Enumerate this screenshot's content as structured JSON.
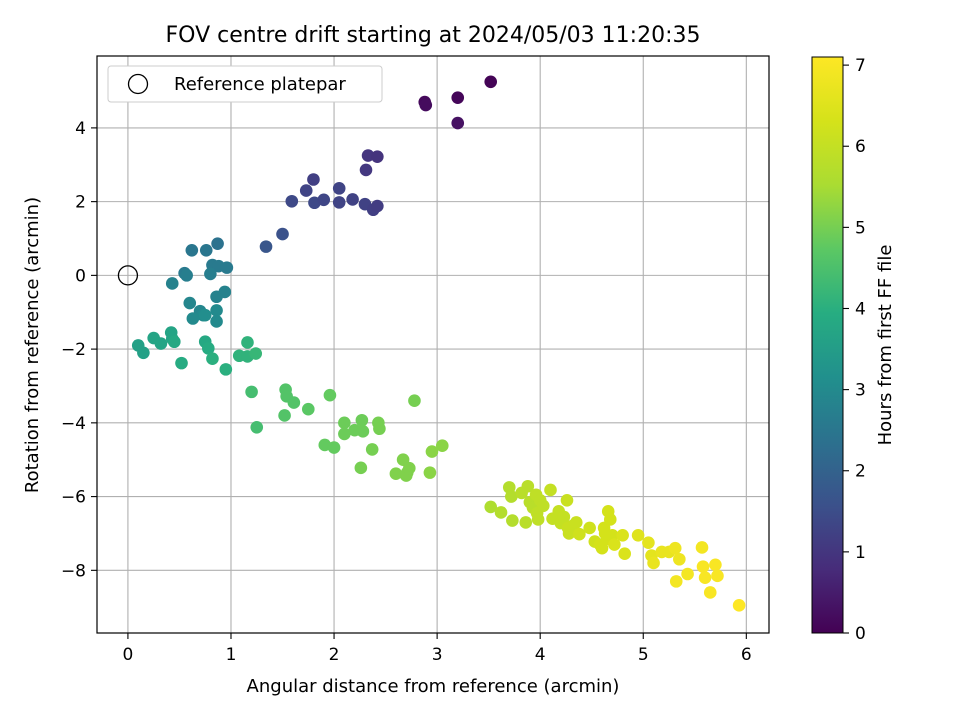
{
  "chart_data": {
    "type": "scatter",
    "title": "FOV centre drift starting at 2024/05/03 11:20:35",
    "xlabel": "Angular distance from reference (arcmin)",
    "ylabel": "Rotation from reference (arcmin)",
    "xlim": [
      -0.3,
      6.22
    ],
    "ylim": [
      -9.7,
      5.95
    ],
    "xticks": [
      0,
      1,
      2,
      3,
      4,
      5,
      6
    ],
    "yticks": [
      -8,
      -6,
      -4,
      -2,
      0,
      2,
      4
    ],
    "grid": true,
    "legend": {
      "position": "upper-left",
      "label": "Reference platepar"
    },
    "reference_point": {
      "x": 0,
      "y": 0
    },
    "colorbar": {
      "label": "Hours from first FF file",
      "colormap": "viridis",
      "range": [
        0,
        7.1
      ],
      "ticks": [
        0,
        1,
        2,
        3,
        4,
        5,
        6,
        7
      ]
    },
    "points": [
      [
        3.52,
        5.25,
        0.05
      ],
      [
        2.88,
        4.7,
        0.15
      ],
      [
        2.89,
        4.62,
        0.2
      ],
      [
        3.2,
        4.82,
        0.1
      ],
      [
        3.2,
        4.13,
        0.3
      ],
      [
        2.33,
        3.25,
        1.0
      ],
      [
        2.42,
        3.22,
        0.95
      ],
      [
        2.31,
        2.86,
        1.05
      ],
      [
        1.8,
        2.6,
        1.2
      ],
      [
        1.73,
        2.3,
        1.3
      ],
      [
        2.05,
        2.36,
        1.3
      ],
      [
        1.59,
        2.01,
        1.4
      ],
      [
        1.81,
        1.97,
        1.4
      ],
      [
        1.9,
        2.05,
        1.35
      ],
      [
        2.05,
        1.98,
        1.3
      ],
      [
        2.18,
        2.06,
        1.25
      ],
      [
        2.3,
        1.93,
        1.25
      ],
      [
        2.38,
        1.78,
        1.2
      ],
      [
        2.42,
        1.88,
        1.15
      ],
      [
        1.34,
        0.78,
        1.7
      ],
      [
        1.5,
        1.12,
        1.6
      ],
      [
        0.87,
        0.86,
        2.4
      ],
      [
        0.62,
        0.68,
        2.5
      ],
      [
        0.76,
        0.68,
        2.5
      ],
      [
        0.82,
        0.28,
        2.6
      ],
      [
        0.88,
        0.25,
        2.6
      ],
      [
        0.96,
        0.21,
        2.6
      ],
      [
        0.55,
        0.06,
        2.6
      ],
      [
        0.57,
        0.0,
        2.7
      ],
      [
        0.8,
        0.04,
        2.7
      ],
      [
        0.43,
        -0.22,
        2.8
      ],
      [
        0.86,
        -0.58,
        2.8
      ],
      [
        0.94,
        -0.45,
        2.8
      ],
      [
        0.6,
        -0.75,
        2.9
      ],
      [
        0.7,
        -0.97,
        2.9
      ],
      [
        0.73,
        -1.08,
        3.0
      ],
      [
        0.86,
        -0.95,
        3.0
      ],
      [
        0.63,
        -1.17,
        3.0
      ],
      [
        0.86,
        -1.25,
        3.0
      ],
      [
        0.75,
        -1.08,
        3.1
      ],
      [
        0.1,
        -1.9,
        3.6
      ],
      [
        0.15,
        -2.1,
        3.6
      ],
      [
        0.25,
        -1.7,
        3.7
      ],
      [
        0.32,
        -1.85,
        3.7
      ],
      [
        0.42,
        -1.55,
        3.7
      ],
      [
        0.43,
        -1.72,
        3.7
      ],
      [
        0.45,
        -1.8,
        3.8
      ],
      [
        0.52,
        -2.38,
        3.9
      ],
      [
        0.75,
        -1.8,
        3.8
      ],
      [
        0.78,
        -1.98,
        3.9
      ],
      [
        0.82,
        -2.26,
        4.0
      ],
      [
        0.95,
        -2.55,
        4.0
      ],
      [
        1.08,
        -2.18,
        4.1
      ],
      [
        1.16,
        -1.82,
        4.1
      ],
      [
        1.16,
        -2.2,
        4.1
      ],
      [
        1.24,
        -2.12,
        4.2
      ],
      [
        1.2,
        -3.16,
        4.4
      ],
      [
        1.25,
        -4.12,
        4.4
      ],
      [
        1.53,
        -3.1,
        4.6
      ],
      [
        1.54,
        -3.28,
        4.6
      ],
      [
        1.61,
        -3.45,
        4.6
      ],
      [
        1.52,
        -3.8,
        4.6
      ],
      [
        1.75,
        -3.63,
        4.7
      ],
      [
        1.96,
        -3.25,
        4.8
      ],
      [
        1.91,
        -4.6,
        4.8
      ],
      [
        2.0,
        -4.67,
        4.8
      ],
      [
        2.1,
        -4.0,
        4.9
      ],
      [
        2.1,
        -4.3,
        4.9
      ],
      [
        2.2,
        -4.2,
        4.9
      ],
      [
        2.27,
        -3.93,
        4.9
      ],
      [
        2.28,
        -4.23,
        4.9
      ],
      [
        2.37,
        -4.72,
        5.0
      ],
      [
        2.43,
        -4.0,
        5.0
      ],
      [
        2.44,
        -4.16,
        5.0
      ],
      [
        2.26,
        -5.22,
        5.0
      ],
      [
        2.78,
        -3.4,
        5.0
      ],
      [
        2.6,
        -5.38,
        5.1
      ],
      [
        2.67,
        -5.0,
        5.1
      ],
      [
        2.7,
        -5.43,
        5.1
      ],
      [
        2.71,
        -5.35,
        5.1
      ],
      [
        2.73,
        -5.23,
        5.1
      ],
      [
        2.93,
        -5.35,
        5.2
      ],
      [
        2.95,
        -4.78,
        5.2
      ],
      [
        3.05,
        -4.62,
        5.2
      ],
      [
        3.52,
        -6.28,
        5.6
      ],
      [
        3.62,
        -6.43,
        5.7
      ],
      [
        3.7,
        -5.75,
        5.7
      ],
      [
        3.72,
        -6.0,
        5.7
      ],
      [
        3.73,
        -6.65,
        5.7
      ],
      [
        3.82,
        -5.9,
        5.8
      ],
      [
        3.86,
        -6.7,
        5.8
      ],
      [
        3.88,
        -5.72,
        5.8
      ],
      [
        3.9,
        -6.15,
        5.8
      ],
      [
        3.93,
        -6.3,
        5.8
      ],
      [
        3.96,
        -5.95,
        5.9
      ],
      [
        3.97,
        -6.45,
        5.9
      ],
      [
        3.98,
        -6.62,
        5.9
      ],
      [
        4.0,
        -6.1,
        5.9
      ],
      [
        4.03,
        -6.25,
        5.9
      ],
      [
        4.1,
        -5.82,
        6.0
      ],
      [
        4.12,
        -6.6,
        6.0
      ],
      [
        4.18,
        -6.4,
        6.0
      ],
      [
        4.2,
        -6.72,
        6.0
      ],
      [
        4.23,
        -6.55,
        6.0
      ],
      [
        4.26,
        -6.1,
        6.1
      ],
      [
        4.27,
        -6.85,
        6.1
      ],
      [
        4.28,
        -7.0,
        6.1
      ],
      [
        4.31,
        -6.8,
        6.1
      ],
      [
        4.35,
        -6.7,
        6.1
      ],
      [
        4.38,
        -7.02,
        6.2
      ],
      [
        4.48,
        -6.85,
        6.2
      ],
      [
        4.53,
        -7.22,
        6.2
      ],
      [
        4.58,
        -7.3,
        6.3
      ],
      [
        4.6,
        -7.4,
        6.3
      ],
      [
        4.62,
        -6.85,
        6.3
      ],
      [
        4.63,
        -7.0,
        6.3
      ],
      [
        4.65,
        -7.15,
        6.3
      ],
      [
        4.66,
        -6.4,
        6.3
      ],
      [
        4.68,
        -6.62,
        6.3
      ],
      [
        4.7,
        -7.05,
        6.3
      ],
      [
        4.72,
        -7.3,
        6.4
      ],
      [
        4.8,
        -7.05,
        6.4
      ],
      [
        4.82,
        -7.55,
        6.4
      ],
      [
        4.95,
        -7.05,
        6.5
      ],
      [
        5.05,
        -7.25,
        6.6
      ],
      [
        5.08,
        -7.6,
        6.6
      ],
      [
        5.1,
        -7.8,
        6.7
      ],
      [
        5.18,
        -7.5,
        6.7
      ],
      [
        5.25,
        -7.5,
        6.7
      ],
      [
        5.31,
        -7.4,
        6.8
      ],
      [
        5.32,
        -8.3,
        6.9
      ],
      [
        5.35,
        -7.7,
        6.8
      ],
      [
        5.43,
        -8.1,
        6.9
      ],
      [
        5.57,
        -7.38,
        6.9
      ],
      [
        5.58,
        -7.9,
        7.0
      ],
      [
        5.6,
        -8.2,
        7.0
      ],
      [
        5.65,
        -8.6,
        7.0
      ],
      [
        5.7,
        -7.85,
        7.0
      ],
      [
        5.72,
        -8.15,
        7.0
      ],
      [
        5.93,
        -8.95,
        7.1
      ]
    ]
  }
}
